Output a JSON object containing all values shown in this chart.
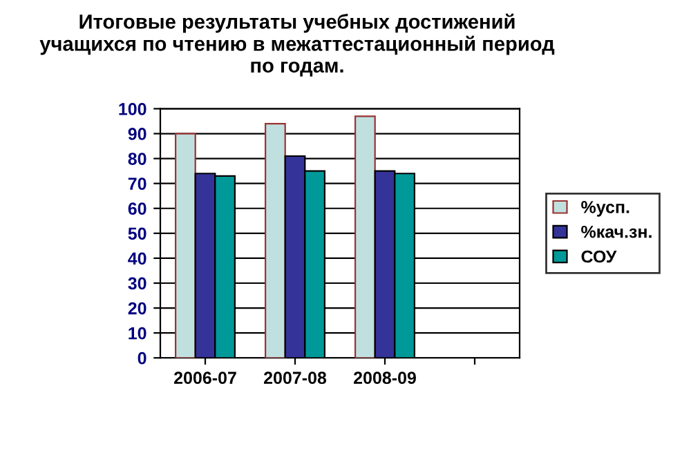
{
  "chart_data": {
    "type": "bar",
    "title": "Итоговые результаты учебных достижений\nучащихся по чтению в межаттестационный период\nпо годам.",
    "categories": [
      "2006-07",
      "2007-08",
      "2008-09",
      null
    ],
    "series": [
      {
        "name": "%усп.",
        "color": "#c0e0e0",
        "values": [
          90,
          94,
          97,
          null
        ]
      },
      {
        "name": "%кач.зн.",
        "color": "#333399",
        "values": [
          74,
          81,
          75,
          null
        ]
      },
      {
        "name": "СОУ",
        "color": "#009999",
        "values": [
          73,
          75,
          74,
          null
        ]
      }
    ],
    "ylim": [
      0,
      100
    ],
    "yticks": [
      0,
      10,
      20,
      30,
      40,
      50,
      60,
      70,
      80,
      90,
      100
    ],
    "grid": "y",
    "legend": "right"
  }
}
